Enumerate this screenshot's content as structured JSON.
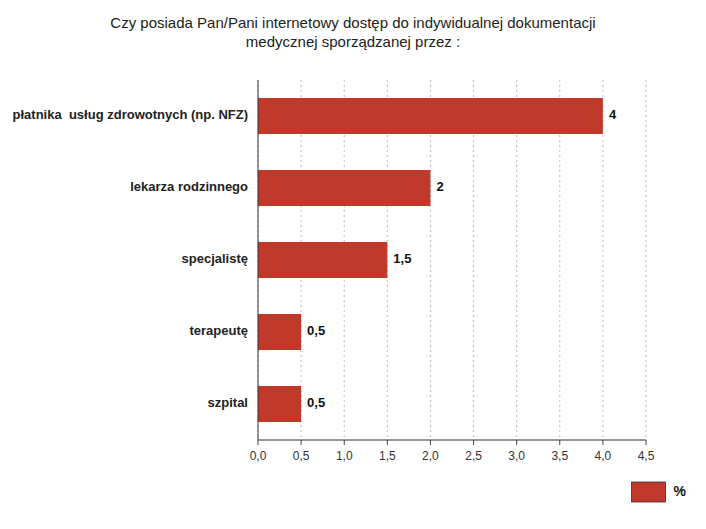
{
  "chart_data": {
    "type": "bar",
    "orientation": "horizontal",
    "title": "Czy posiada Pan/Pani internetowy dostęp do indywidualnej dokumentacji\nmedycznej sporządzanej przez :",
    "categories": [
      "szpital",
      "terapeutę",
      "specjalistę",
      "lekarza rodzinnego",
      "płatnika  usług zdrowotnych (np. NFZ)"
    ],
    "series": [
      {
        "name": "%",
        "color": "#c0392b",
        "values": [
          0.5,
          0.5,
          1.5,
          2.0,
          4.0
        ],
        "value_labels": [
          "0,5",
          "0,5",
          "1,5",
          "2",
          "4"
        ]
      }
    ],
    "xlim": [
      0,
      4.5
    ],
    "xticks": [
      {
        "value": 0.0,
        "label": "0,0"
      },
      {
        "value": 0.5,
        "label": "0,5"
      },
      {
        "value": 1.0,
        "label": "1,0"
      },
      {
        "value": 1.5,
        "label": "1,5"
      },
      {
        "value": 2.0,
        "label": "2,0"
      },
      {
        "value": 2.5,
        "label": "2,5"
      },
      {
        "value": 3.0,
        "label": "3,0"
      },
      {
        "value": 3.5,
        "label": "3,5"
      },
      {
        "value": 4.0,
        "label": "4,0"
      },
      {
        "value": 4.5,
        "label": "4,5"
      }
    ],
    "grid": true,
    "legend": "lower right",
    "data_labels": true
  }
}
